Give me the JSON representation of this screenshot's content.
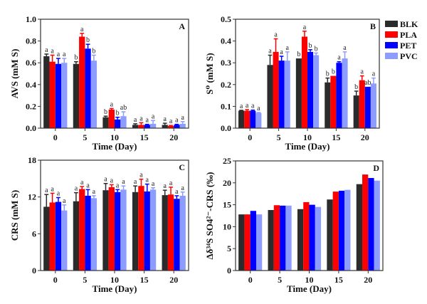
{
  "legend": {
    "entries": [
      {
        "name": "BLK",
        "color": "#2b2b2b"
      },
      {
        "name": "PLA",
        "color": "#ff0000"
      },
      {
        "name": "PET",
        "color": "#0000ff"
      },
      {
        "name": "PVC",
        "color": "#8c9cff"
      }
    ],
    "placement": "right of panel B"
  },
  "chart_data": [
    {
      "type": "bar",
      "panel": "A",
      "title": "",
      "xlabel": "Time (Day)",
      "ylabel": "AVS (mM S)",
      "categories": [
        "0",
        "5",
        "10",
        "15",
        "20"
      ],
      "ylim": [
        0,
        1.0
      ],
      "yticks": [
        "0.0",
        "0.2",
        "0.4",
        "0.6",
        "0.8",
        "1.0"
      ],
      "ytick_values": [
        0,
        0.2,
        0.4,
        0.6,
        0.8,
        1.0
      ],
      "series": [
        {
          "name": "BLK",
          "values": [
            0.66,
            0.59,
            0.1,
            0.03,
            0.03
          ],
          "errors": [
            0.02,
            0.02,
            0.01,
            0.01,
            0.015
          ],
          "sig": [
            "a",
            "b",
            "b",
            "a",
            "a"
          ]
        },
        {
          "name": "PLA",
          "values": [
            0.61,
            0.84,
            0.17,
            0.03,
            0.02
          ],
          "errors": [
            0.06,
            0.03,
            0.01,
            0.02,
            0.005
          ],
          "sig": [
            "a",
            "a",
            "a",
            "a",
            "a"
          ]
        },
        {
          "name": "PET",
          "values": [
            0.59,
            0.73,
            0.08,
            0.03,
            0.03
          ],
          "errors": [
            0.05,
            0.04,
            0.02,
            0.005,
            0.005
          ],
          "sig": [
            "a",
            "b",
            "b",
            "a",
            "a"
          ]
        },
        {
          "name": "PVC",
          "values": [
            0.6,
            0.62,
            0.11,
            0.04,
            0.04
          ],
          "errors": [
            0.04,
            0.05,
            0.04,
            0.03,
            0.02
          ],
          "sig": [
            "a",
            "b",
            "ab",
            "a",
            "a"
          ]
        }
      ]
    },
    {
      "type": "bar",
      "panel": "B",
      "title": "",
      "xlabel": "Time (Day)",
      "ylabel": "S⁰ (mM S)",
      "categories": [
        "0",
        "5",
        "10",
        "15",
        "20"
      ],
      "ylim": [
        0,
        0.5
      ],
      "yticks": [
        "0.0",
        "0.1",
        "0.2",
        "0.3",
        "0.4",
        "0.5"
      ],
      "ytick_values": [
        0,
        0.1,
        0.2,
        0.3,
        0.4,
        0.5
      ],
      "series": [
        {
          "name": "BLK",
          "values": [
            0.08,
            0.29,
            0.32,
            0.21,
            0.15
          ],
          "errors": [
            0.002,
            0.045,
            0.0,
            0.02,
            0.02
          ],
          "sig": [
            "a",
            "a",
            "b",
            "b",
            "b"
          ]
        },
        {
          "name": "PLA",
          "values": [
            0.08,
            0.35,
            0.42,
            0.24,
            0.22
          ],
          "errors": [
            0.005,
            0.06,
            0.025,
            0.0,
            0.02
          ],
          "sig": [
            "a",
            "a",
            "a",
            "b",
            "a"
          ]
        },
        {
          "name": "PET",
          "values": [
            0.08,
            0.31,
            0.35,
            0.3,
            0.19
          ],
          "errors": [
            0.003,
            0.02,
            0.01,
            0.005,
            0.0
          ],
          "sig": [
            "a",
            "a",
            "b",
            "a",
            "ab"
          ]
        },
        {
          "name": "PVC",
          "values": [
            0.07,
            0.31,
            0.335,
            0.32,
            0.205
          ],
          "errors": [
            0.002,
            0.04,
            0.01,
            0.03,
            0.025
          ],
          "sig": [
            "a",
            "a",
            "b",
            "a",
            "a"
          ]
        }
      ]
    },
    {
      "type": "bar",
      "panel": "C",
      "title": "",
      "xlabel": "Time (Day)",
      "ylabel": "CRS (mM S)",
      "categories": [
        "0",
        "5",
        "10",
        "15",
        "20"
      ],
      "ylim": [
        0,
        18
      ],
      "yticks": [
        "0",
        "6",
        "12",
        "18"
      ],
      "ytick_values": [
        0,
        6,
        12,
        18
      ],
      "series": [
        {
          "name": "BLK",
          "values": [
            10.4,
            11.3,
            13.1,
            12.8,
            12.3
          ],
          "errors": [
            2.0,
            1.4,
            1.1,
            1.0,
            0.8
          ],
          "sig": [
            "a",
            "a",
            "a",
            "a",
            "a"
          ]
        },
        {
          "name": "PLA",
          "values": [
            11.1,
            13.3,
            13.6,
            13.8,
            12.4
          ],
          "errors": [
            1.5,
            0.4,
            0.4,
            1.1,
            1.2
          ],
          "sig": [
            "a",
            "a",
            "a",
            "a",
            "a"
          ]
        },
        {
          "name": "PET",
          "values": [
            11.2,
            12.2,
            12.8,
            12.9,
            11.7
          ],
          "errors": [
            0.7,
            1.0,
            0.4,
            1.2,
            0.5
          ],
          "sig": [
            "a",
            "a",
            "a",
            "a",
            "a"
          ]
        },
        {
          "name": "PVC",
          "values": [
            9.8,
            11.8,
            13.2,
            13.2,
            12.2
          ],
          "errors": [
            0.9,
            0.4,
            0.6,
            0.3,
            0.6
          ],
          "sig": [
            "a",
            "a",
            "a",
            "a",
            "a"
          ]
        }
      ]
    },
    {
      "type": "bar",
      "panel": "D",
      "title": "",
      "xlabel": "Time (Day)",
      "ylabel": "Δδ³⁴S SO4²⁻-CRS (‰)",
      "categories": [
        "0",
        "5",
        "10",
        "15",
        "20"
      ],
      "ylim": [
        0,
        25
      ],
      "yticks": [
        "0",
        "5",
        "10",
        "15",
        "20",
        "25"
      ],
      "ytick_values": [
        0,
        5,
        10,
        15,
        20,
        25
      ],
      "series": [
        {
          "name": "BLK",
          "values": [
            12.8,
            13.8,
            14.0,
            16.2,
            19.7
          ]
        },
        {
          "name": "PLA",
          "values": [
            12.8,
            14.9,
            15.6,
            18.0,
            21.9
          ]
        },
        {
          "name": "PET",
          "values": [
            13.6,
            14.8,
            15.0,
            18.2,
            21.1
          ]
        },
        {
          "name": "PVC",
          "values": [
            12.8,
            14.8,
            14.5,
            18.4,
            20.5
          ]
        }
      ]
    }
  ]
}
